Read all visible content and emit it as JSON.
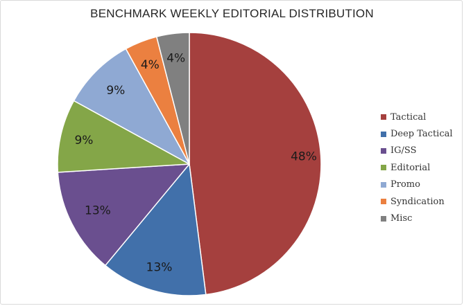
{
  "chart_data": {
    "type": "pie",
    "title": "BENCHMARK WEEKLY EDITORIAL DISTRIBUTION",
    "categories": [
      "Tactical",
      "Deep Tactical",
      "IG/SS",
      "Editorial",
      "Promo",
      "Syndication",
      "Misc"
    ],
    "values": [
      48,
      13,
      13,
      9,
      9,
      4,
      4
    ],
    "labels": [
      "48%",
      "13%",
      "13%",
      "9%",
      "9%",
      "4%",
      "4%"
    ],
    "colors": [
      "#A5403E",
      "#4170AA",
      "#6A4F8F",
      "#84A648",
      "#8FA9D3",
      "#EB8040",
      "#808080"
    ],
    "start": "12 o'clock",
    "direction": "clockwise",
    "legend_position": "right"
  }
}
